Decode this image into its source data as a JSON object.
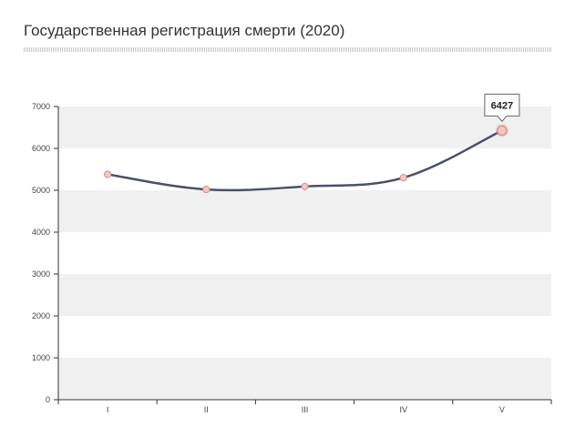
{
  "chart_data": {
    "type": "line",
    "title": "Государственная регистрация смерти (2020)",
    "categories": [
      "I",
      "II",
      "III",
      "IV",
      "V"
    ],
    "series": [
      {
        "values": [
          5380,
          5020,
          5090,
          5300,
          6427
        ]
      }
    ],
    "ylim": [
      0,
      7000
    ],
    "yticks": [
      0,
      1000,
      2000,
      3000,
      4000,
      5000,
      6000,
      7000
    ],
    "grid": "alternating horizontal bands",
    "tooltip": {
      "category": "V",
      "value": "6427"
    },
    "colors": {
      "line": "#4a5068",
      "marker_fill": "#f4c6c0",
      "marker_stroke": "#d98f88",
      "band": "#f0f0f0",
      "axis": "#333333"
    }
  }
}
